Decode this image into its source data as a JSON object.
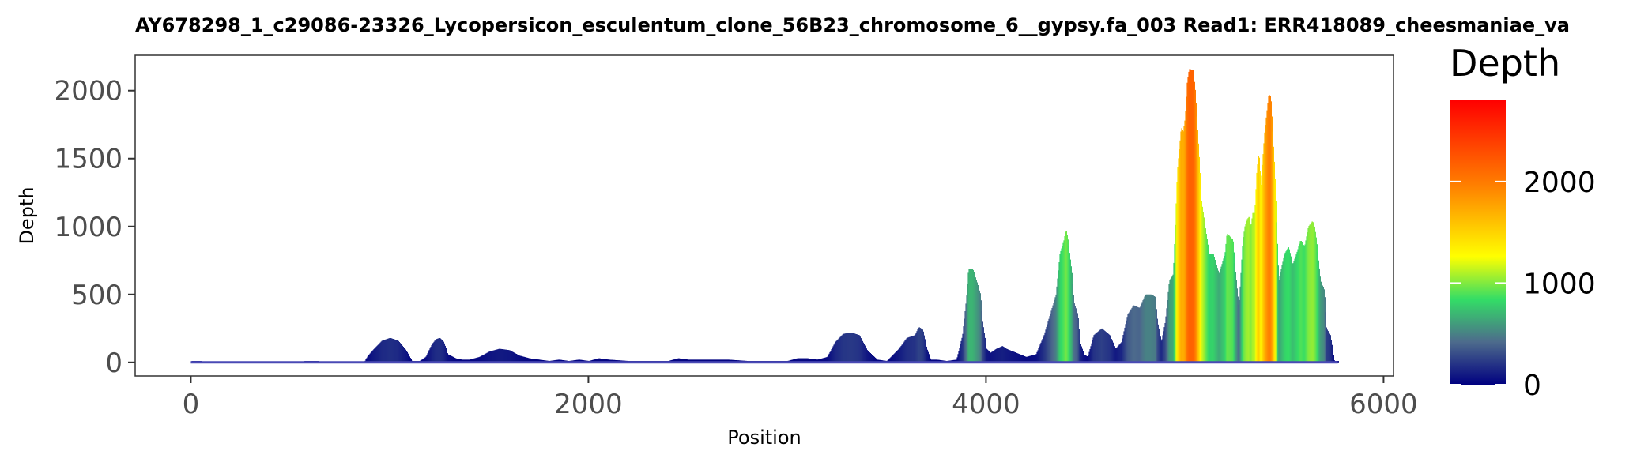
{
  "chart_data": {
    "type": "area",
    "title": "AY678298_1_c29086-23326_Lycopersicon_esculentum_clone_56B23_chromosome_6__gypsy.fa_003   Read1: ERR418089_cheesmaniae_va",
    "xlabel": "Position",
    "ylabel": "Depth",
    "xlim": [
      -280,
      6050
    ],
    "ylim": [
      -100,
      2260
    ],
    "x_ticks": [
      0,
      2000,
      4000,
      6000
    ],
    "x_tick_labels": [
      "0",
      "2000",
      "4000",
      "6000"
    ],
    "y_ticks": [
      0,
      500,
      1000,
      1500,
      2000
    ],
    "y_tick_labels": [
      "0",
      "500",
      "1000",
      "1500",
      "2000"
    ],
    "grid": false,
    "legend": {
      "title": "Depth",
      "position": "right",
      "type": "colorbar",
      "range": [
        0,
        2800
      ],
      "ticks": [
        0,
        1000,
        2000
      ],
      "tick_labels": [
        "0",
        "1000",
        "2000"
      ],
      "colors": [
        "#000080",
        "#4d6b8c",
        "#33dd66",
        "#ffff00",
        "#ff8000",
        "#ff0000"
      ],
      "color_stops": [
        0,
        0.15,
        0.3,
        0.45,
        0.7,
        1.0
      ]
    },
    "series": [
      {
        "x": [
          0,
          50,
          60,
          550,
          570,
          640,
          650,
          870,
          890,
          920,
          960,
          1000,
          1040,
          1080,
          1110,
          1150,
          1180,
          1210,
          1230,
          1250,
          1270,
          1290,
          1330,
          1360,
          1400,
          1450,
          1500,
          1550,
          1600,
          1650,
          1700,
          1750,
          1800,
          1850,
          1900,
          1950,
          2000,
          2050,
          2100,
          2200,
          2300,
          2400,
          2450,
          2500,
          2600,
          2700,
          2800,
          2900,
          3000,
          3050,
          3100,
          3150,
          3200,
          3240,
          3280,
          3320,
          3360,
          3400,
          3450,
          3500,
          3560,
          3600,
          3640,
          3660,
          3680,
          3700,
          3720,
          3750,
          3800,
          3850,
          3880,
          3900,
          3910,
          3930,
          3950,
          3970,
          3980,
          4000,
          4020,
          4050,
          4080,
          4100,
          4150,
          4200,
          4250,
          4290,
          4310,
          4330,
          4350,
          4370,
          4390,
          4400,
          4410,
          4430,
          4440,
          4460,
          4470,
          4490,
          4510,
          4540,
          4580,
          4620,
          4650,
          4680,
          4710,
          4740,
          4770,
          4800,
          4830,
          4850,
          4860,
          4880,
          4900,
          4920,
          4940,
          4950,
          4960,
          4980,
          4990,
          5000,
          5010,
          5020,
          5040,
          5050,
          5070,
          5080,
          5100,
          5120,
          5140,
          5170,
          5200,
          5210,
          5240,
          5250,
          5270,
          5290,
          5300,
          5310,
          5320,
          5330,
          5340,
          5350,
          5360,
          5370,
          5380,
          5400,
          5420,
          5430,
          5450,
          5470,
          5500,
          5520,
          5540,
          5560,
          5580,
          5600,
          5620,
          5640,
          5650,
          5660,
          5680,
          5700,
          5710,
          5730,
          5750,
          5760,
          5770
        ],
        "y": [
          10,
          10,
          0,
          0,
          10,
          10,
          0,
          0,
          50,
          100,
          160,
          180,
          160,
          90,
          10,
          10,
          40,
          130,
          170,
          180,
          150,
          60,
          30,
          20,
          20,
          40,
          80,
          100,
          90,
          50,
          30,
          20,
          10,
          20,
          10,
          20,
          10,
          30,
          20,
          10,
          10,
          10,
          30,
          20,
          20,
          20,
          10,
          10,
          10,
          30,
          30,
          20,
          40,
          150,
          210,
          220,
          200,
          90,
          20,
          10,
          100,
          180,
          200,
          260,
          240,
          100,
          20,
          20,
          10,
          20,
          200,
          480,
          690,
          690,
          600,
          500,
          300,
          100,
          70,
          100,
          120,
          100,
          70,
          40,
          60,
          200,
          300,
          400,
          500,
          800,
          900,
          980,
          900,
          650,
          440,
          350,
          150,
          60,
          40,
          200,
          250,
          200,
          100,
          150,
          350,
          420,
          400,
          500,
          500,
          480,
          300,
          150,
          300,
          600,
          650,
          1000,
          1400,
          1730,
          1700,
          1800,
          2060,
          2160,
          2150,
          2000,
          1500,
          1200,
          1000,
          800,
          800,
          650,
          800,
          950,
          900,
          700,
          400,
          900,
          1000,
          1050,
          1070,
          1000,
          1100,
          1100,
          1400,
          1550,
          1300,
          1700,
          1970,
          1960,
          1400,
          600,
          800,
          850,
          720,
          800,
          900,
          850,
          1000,
          1040,
          1000,
          900,
          600,
          530,
          250,
          200,
          10,
          10,
          10
        ]
      }
    ]
  }
}
